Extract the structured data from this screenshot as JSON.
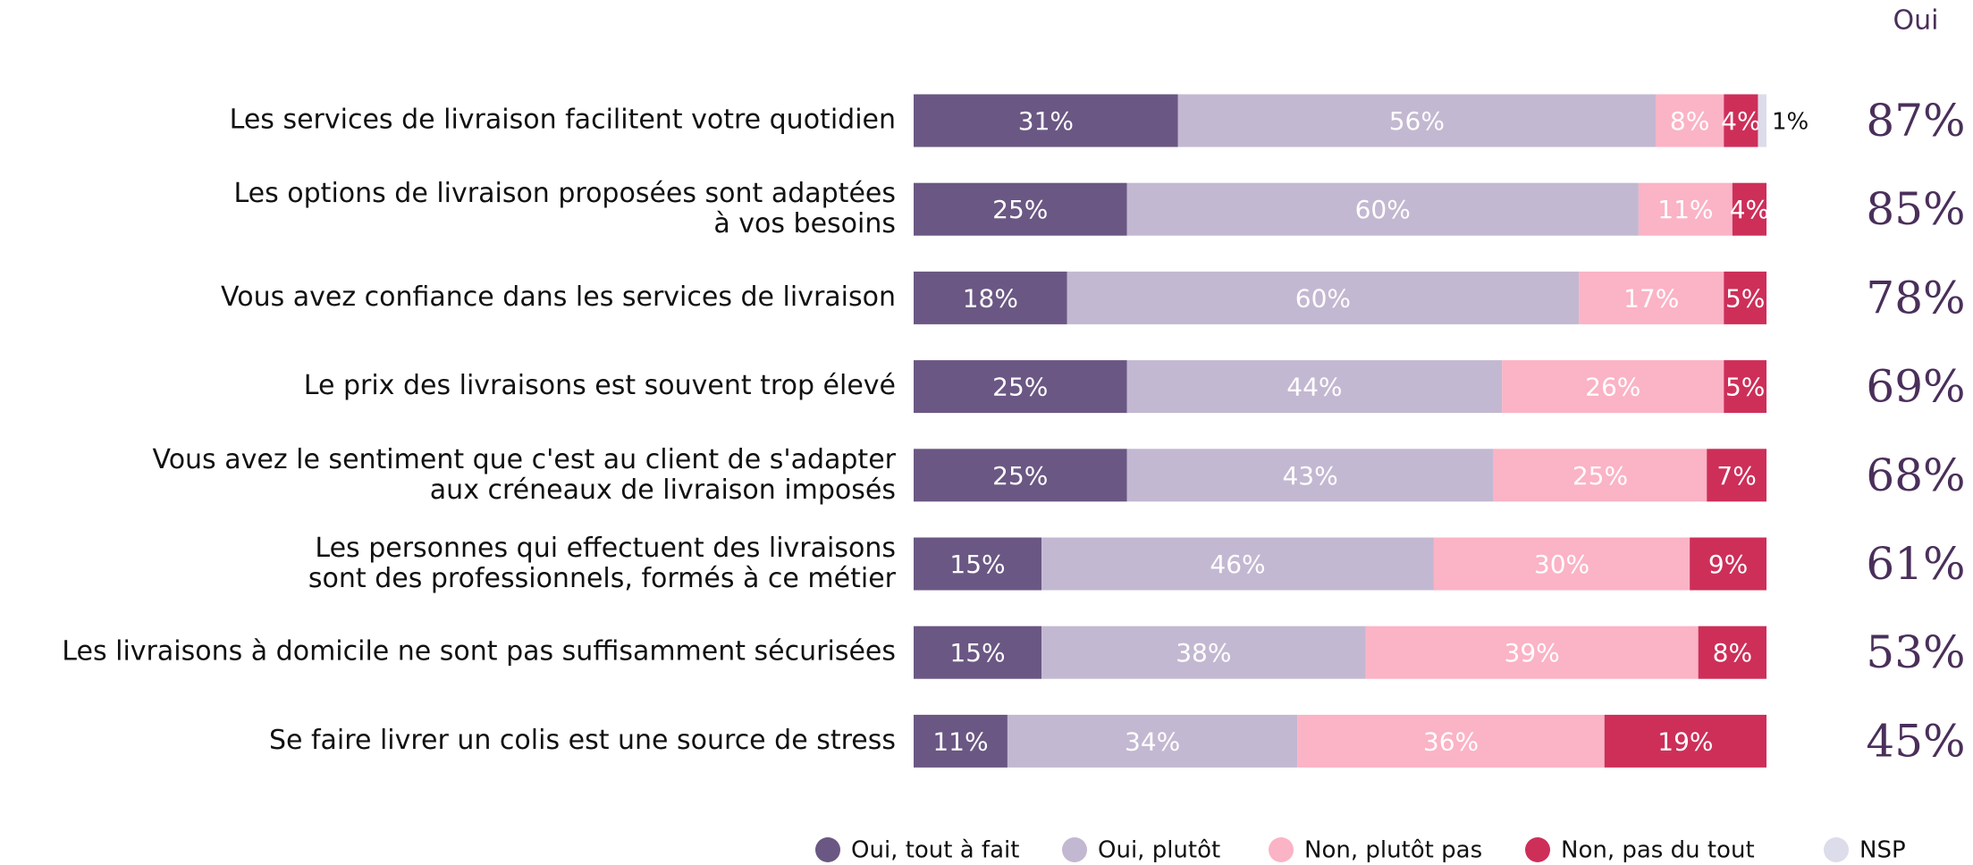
{
  "chart_data": {
    "type": "stacked-bar-horizontal",
    "categories": [
      "Les services de livraison facilitent votre quotidien",
      "Les options de livraison proposées sont adaptées\nà vos besoins",
      "Vous avez confiance dans les services de livraison",
      "Le prix des livraisons est souvent trop élevé",
      "Vous avez le sentiment que c'est au client de s'adapter\naux créneaux de livraison imposés",
      "Les personnes qui effectuent des livraisons\nsont des professionnels, formés à ce métier",
      "Les livraisons à domicile ne sont pas suffisamment sécurisées",
      "Se faire livrer un colis est une source de stress"
    ],
    "xlim": [
      0,
      100
    ],
    "series": [
      {
        "name": "Oui, tout à fait",
        "color": "#6a5783",
        "values": [
          31,
          25,
          18,
          25,
          25,
          15,
          15,
          11
        ],
        "value_labels": [
          "31%",
          "25%",
          "18%",
          "25%",
          "25%",
          "15%",
          "15%",
          "11%"
        ]
      },
      {
        "name": "Oui, plutôt",
        "color": "#c3b8d1",
        "values": [
          56,
          60,
          60,
          44,
          43,
          46,
          38,
          34
        ],
        "value_labels": [
          "56%",
          "60%",
          "60%",
          "44%",
          "43%",
          "46%",
          "38%",
          "34%"
        ]
      },
      {
        "name": "Non, plutôt pas",
        "color": "#fbb3c6",
        "values": [
          8,
          11,
          17,
          26,
          25,
          30,
          39,
          36
        ],
        "value_labels": [
          "8%",
          "11%",
          "17%",
          "26%",
          "25%",
          "30%",
          "39%",
          "36%"
        ]
      },
      {
        "name": "Non, pas du tout",
        "color": "#cd2f59",
        "values": [
          4,
          4,
          5,
          5,
          7,
          9,
          8,
          19
        ],
        "value_labels": [
          "4%",
          "4%",
          "5%",
          "5%",
          "7%",
          "9%",
          "8%",
          "19%"
        ]
      },
      {
        "name": "NSP",
        "color": "#dcdcea",
        "values": [
          1,
          0,
          0,
          0,
          0,
          0,
          0,
          0
        ],
        "value_labels": [
          "1%",
          null,
          null,
          null,
          null,
          null,
          null,
          null
        ]
      }
    ],
    "totals": {
      "title": "Oui",
      "values": [
        87,
        85,
        78,
        69,
        68,
        61,
        53,
        45
      ],
      "value_labels": [
        "87%",
        "85%",
        "78%",
        "69%",
        "68%",
        "61%",
        "53%",
        "45%"
      ]
    }
  }
}
